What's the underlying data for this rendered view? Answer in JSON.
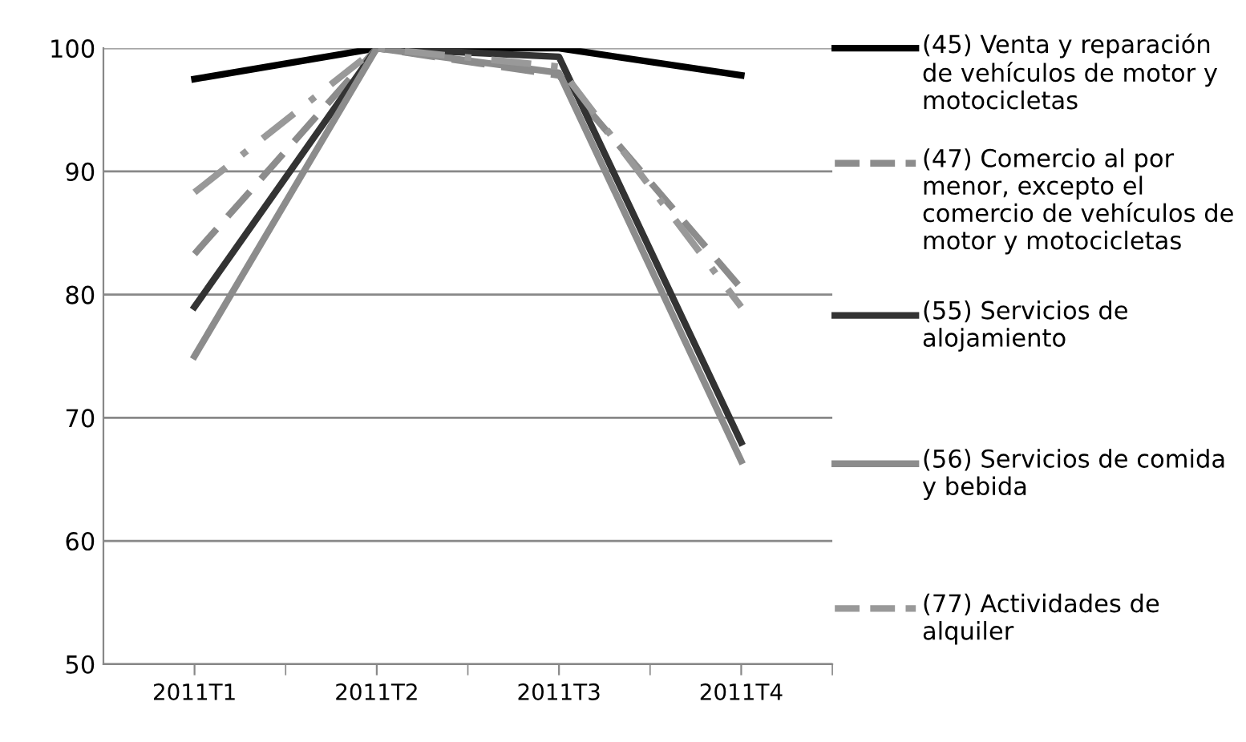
{
  "chart_data": {
    "type": "line",
    "categories": [
      "2011T1",
      "2011T2",
      "2011T3",
      "2011T4"
    ],
    "series": [
      {
        "name": "(45) Venta y reparación de vehículos de motor y motocicletas",
        "color": "#000000",
        "line_style": "solid",
        "values": [
          97.5,
          100,
          100,
          97.8
        ]
      },
      {
        "name": "(47) Comercio al por menor, excepto el comercio de vehículos de motor y motocicletas",
        "color": "#8c8c8c",
        "line_style": "dashed",
        "values": [
          83.3,
          100,
          97.8,
          80.5
        ]
      },
      {
        "name": "(55) Servicios de alojamiento",
        "color": "#333333",
        "line_style": "solid",
        "values": [
          79,
          100,
          99.3,
          68
        ]
      },
      {
        "name": "(56) Servicios de comida y bebida",
        "color": "#8c8c8c",
        "line_style": "solid",
        "values": [
          75,
          100,
          98,
          66.5
        ]
      },
      {
        "name": "(77) Actividades de alquiler",
        "color": "#999999",
        "line_style": "dotted",
        "values": [
          88.3,
          100,
          98.5,
          79
        ]
      }
    ],
    "ylim": [
      50,
      100
    ],
    "yticks": [
      50,
      60,
      70,
      80,
      90,
      100
    ],
    "grid": "y",
    "legend": "right"
  }
}
